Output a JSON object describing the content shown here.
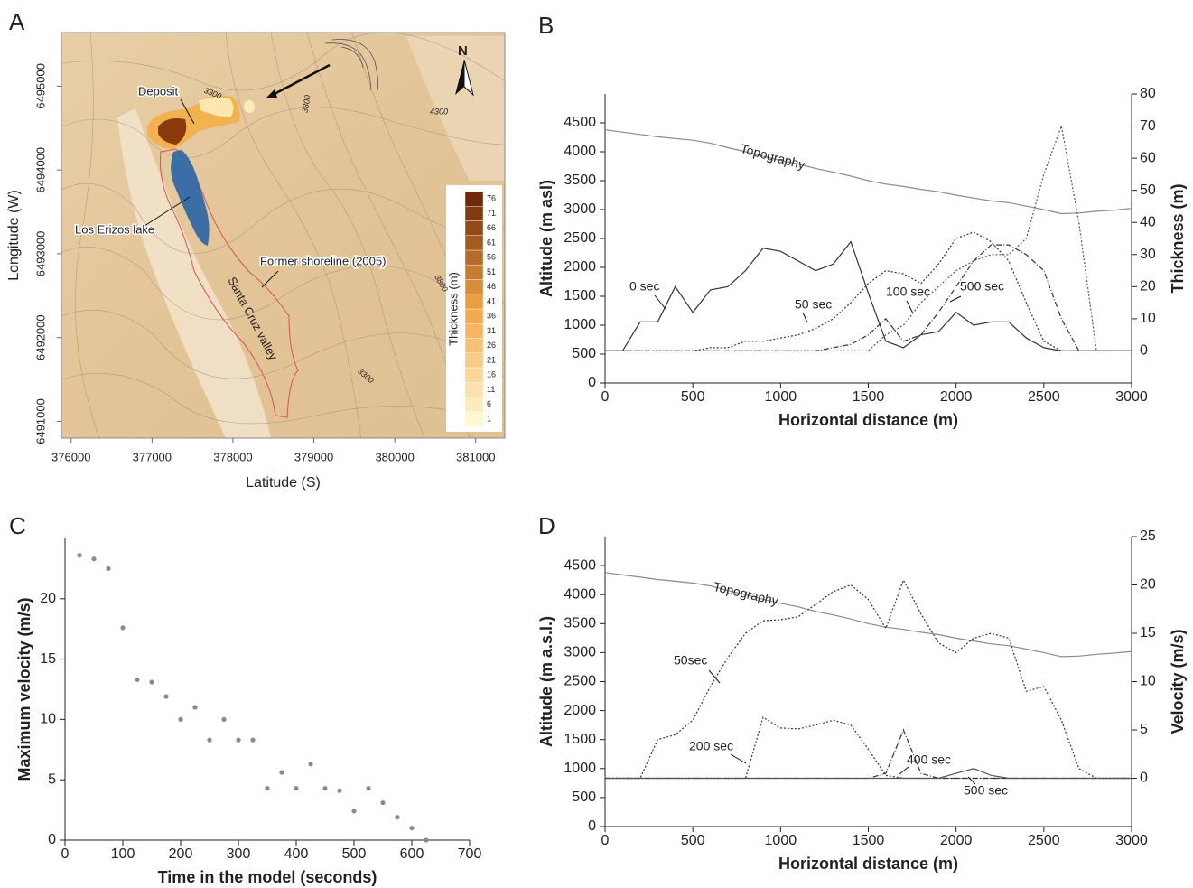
{
  "chart_data": [
    {
      "type": "map",
      "panel": "A",
      "xlabel": "Latitude (S)",
      "ylabel": "Longitude (W)",
      "xlim": [
        375880,
        381360
      ],
      "ylim": [
        6490800,
        6495640
      ],
      "xticks": [
        376000,
        377000,
        378000,
        379000,
        380000,
        381000
      ],
      "yticks": [
        6491000,
        6492000,
        6493000,
        6494000,
        6495000
      ],
      "annotations": [
        "Deposit",
        "Los Erizos lake",
        "Former shoreline (2005)",
        "Santa Cruz valley",
        "N"
      ],
      "contour_labels": [
        3300,
        3800,
        4300,
        3800,
        3300
      ],
      "colorbar": {
        "label": "Thickness (m)",
        "ticks": [
          1,
          6,
          11,
          16,
          21,
          26,
          31,
          36,
          41,
          46,
          51,
          56,
          61,
          66,
          71,
          76
        ],
        "colors": [
          "#fff6d2",
          "#f3a646",
          "#6e2a06"
        ]
      }
    },
    {
      "type": "line",
      "panel": "B",
      "xlabel": "Horizontal distance (m)",
      "ylabel": "Altitude (m asl)",
      "y2label": "Thickness (m)",
      "x": [
        0,
        100,
        200,
        300,
        400,
        500,
        600,
        700,
        800,
        900,
        1000,
        1100,
        1200,
        1300,
        1400,
        1500,
        1600,
        1700,
        1800,
        1900,
        2000,
        2100,
        2200,
        2300,
        2400,
        2500,
        2600,
        2700,
        2800,
        2900,
        3000
      ],
      "xlim": [
        0,
        3000
      ],
      "xticks": [
        0,
        500,
        1000,
        1500,
        2000,
        2500,
        3000
      ],
      "ylim": [
        0,
        5000
      ],
      "yticks": [
        0,
        500,
        1000,
        1500,
        2000,
        2500,
        3000,
        3500,
        4000,
        4500
      ],
      "y2lim": [
        -10,
        80
      ],
      "y2ticks": [
        0,
        10,
        20,
        30,
        40,
        50,
        60,
        70,
        80
      ],
      "series": [
        {
          "name": "Topography",
          "color": "#8a8a8a",
          "style": "solid",
          "values": [
            4380,
            4340,
            4300,
            4260,
            4230,
            4200,
            4150,
            4070,
            4000,
            3920,
            3850,
            3790,
            3710,
            3650,
            3580,
            3500,
            3440,
            3400,
            3350,
            3310,
            3250,
            3200,
            3150,
            3120,
            3060,
            3000,
            2930,
            2940,
            2970,
            2990,
            3020
          ]
        },
        {
          "name": "0 sec",
          "color": "#333333",
          "style": "solid",
          "axis": "y2",
          "values": [
            0,
            0,
            9,
            9,
            20,
            12,
            19,
            20,
            25,
            32,
            31,
            28,
            25,
            27,
            34,
            18,
            3,
            1,
            5,
            6,
            12,
            8,
            9,
            9,
            4,
            1,
            0,
            0,
            0,
            0,
            0
          ]
        },
        {
          "name": "50 sec",
          "color": "#333333",
          "style": "dotted",
          "axis": "y2",
          "values": [
            0,
            0,
            0,
            0,
            0,
            0,
            1,
            1,
            3,
            3,
            4,
            5,
            7,
            10,
            15,
            21,
            25,
            24,
            21,
            27,
            35,
            37,
            34,
            28,
            15,
            3,
            0,
            0,
            0,
            0,
            0
          ]
        },
        {
          "name": "100 sec",
          "color": "#333333",
          "style": "dashdot",
          "axis": "y2",
          "values": [
            0,
            0,
            0,
            0,
            0,
            0,
            0,
            0,
            0,
            0,
            0,
            0,
            0,
            1,
            2,
            5,
            10,
            3,
            5,
            12,
            20,
            28,
            33,
            33,
            30,
            25,
            10,
            0,
            0,
            0,
            0
          ]
        },
        {
          "name": "500 sec",
          "color": "#555555",
          "style": "dotted",
          "axis": "y2",
          "values": [
            0,
            0,
            0,
            0,
            0,
            0,
            0,
            0,
            0,
            0,
            0,
            0,
            0,
            0,
            0,
            0,
            5,
            8,
            15,
            20,
            25,
            28,
            30,
            30,
            35,
            55,
            70,
            40,
            0,
            0,
            0
          ]
        }
      ]
    },
    {
      "type": "scatter",
      "panel": "C",
      "xlabel": "Time in the model (seconds)",
      "ylabel": "Maximum velocity (m/s)",
      "x": [
        25,
        50,
        75,
        100,
        125,
        150,
        175,
        200,
        225,
        250,
        275,
        300,
        325,
        350,
        375,
        400,
        425,
        450,
        475,
        500,
        525,
        550,
        575,
        600,
        625
      ],
      "values": [
        23.6,
        23.3,
        22.5,
        17.6,
        13.3,
        13.1,
        11.9,
        10.0,
        11.0,
        8.3,
        10.0,
        8.3,
        8.3,
        4.3,
        5.6,
        4.3,
        6.3,
        4.3,
        4.1,
        2.4,
        4.3,
        3.1,
        1.9,
        1.0,
        0
      ],
      "color": "#8a8a8a",
      "xlim": [
        0,
        700
      ],
      "xticks": [
        0,
        100,
        200,
        300,
        400,
        500,
        600,
        700
      ],
      "ylim": [
        0,
        25
      ],
      "yticks": [
        0,
        5,
        10,
        15,
        20
      ]
    },
    {
      "type": "line",
      "panel": "D",
      "xlabel": "Horizontal distance (m)",
      "ylabel": "Altitude (m a.s.l.)",
      "y2label": "Velocity (m/s)",
      "x": [
        0,
        100,
        200,
        300,
        400,
        500,
        600,
        700,
        800,
        900,
        1000,
        1100,
        1200,
        1300,
        1400,
        1500,
        1600,
        1700,
        1800,
        1900,
        2000,
        2100,
        2200,
        2300,
        2400,
        2500,
        2600,
        2700,
        2800,
        2900,
        3000
      ],
      "xlim": [
        0,
        3000
      ],
      "xticks": [
        0,
        500,
        1000,
        1500,
        2000,
        2500,
        3000
      ],
      "ylim": [
        0,
        5000
      ],
      "yticks": [
        0,
        500,
        1000,
        1500,
        2000,
        2500,
        3000,
        3500,
        4000,
        4500
      ],
      "y2lim": [
        -5,
        25
      ],
      "y2ticks": [
        0,
        5,
        10,
        15,
        20,
        25
      ],
      "series": [
        {
          "name": "Topography",
          "color": "#8a8a8a",
          "style": "solid",
          "values": [
            4380,
            4340,
            4300,
            4260,
            4230,
            4200,
            4150,
            4070,
            4000,
            3920,
            3850,
            3790,
            3710,
            3650,
            3580,
            3500,
            3440,
            3400,
            3350,
            3310,
            3250,
            3200,
            3150,
            3120,
            3060,
            3000,
            2930,
            2940,
            2970,
            2990,
            3020
          ]
        },
        {
          "name": "50sec",
          "color": "#333333",
          "style": "dotted",
          "axis": "y2",
          "values": [
            0,
            0,
            0,
            4,
            4.5,
            6,
            9.5,
            12.5,
            15,
            16.3,
            16.4,
            16.7,
            18,
            19.3,
            20,
            18.5,
            15.5,
            20.5,
            17,
            14,
            13,
            14.5,
            15,
            14.5,
            9,
            9.5,
            6,
            1,
            0,
            0,
            0
          ]
        },
        {
          "name": "200 sec",
          "color": "#333333",
          "style": "dotted",
          "axis": "y2",
          "values": [
            0,
            0,
            0,
            0,
            0,
            0,
            0,
            0,
            0,
            6.3,
            5.2,
            5.1,
            5.5,
            6,
            5.5,
            3,
            0.3,
            0,
            0,
            0,
            0,
            0,
            0,
            0,
            0,
            0,
            0,
            0,
            0,
            0,
            0
          ]
        },
        {
          "name": "400 sec",
          "color": "#333333",
          "style": "dashdot",
          "axis": "y2",
          "values": [
            0,
            0,
            0,
            0,
            0,
            0,
            0,
            0,
            0,
            0,
            0,
            0,
            0,
            0,
            0,
            0,
            0.5,
            5,
            0.5,
            0,
            0,
            0,
            0,
            0,
            0,
            0,
            0,
            0,
            0,
            0,
            0
          ]
        },
        {
          "name": "500 sec",
          "color": "#555555",
          "style": "solid",
          "axis": "y2",
          "values": [
            0,
            0,
            0,
            0,
            0,
            0,
            0,
            0,
            0,
            0,
            0,
            0,
            0,
            0,
            0,
            0,
            0,
            0,
            0,
            0,
            0.5,
            1,
            0.3,
            0,
            0,
            0,
            0,
            0,
            0,
            0,
            0
          ]
        }
      ]
    }
  ]
}
